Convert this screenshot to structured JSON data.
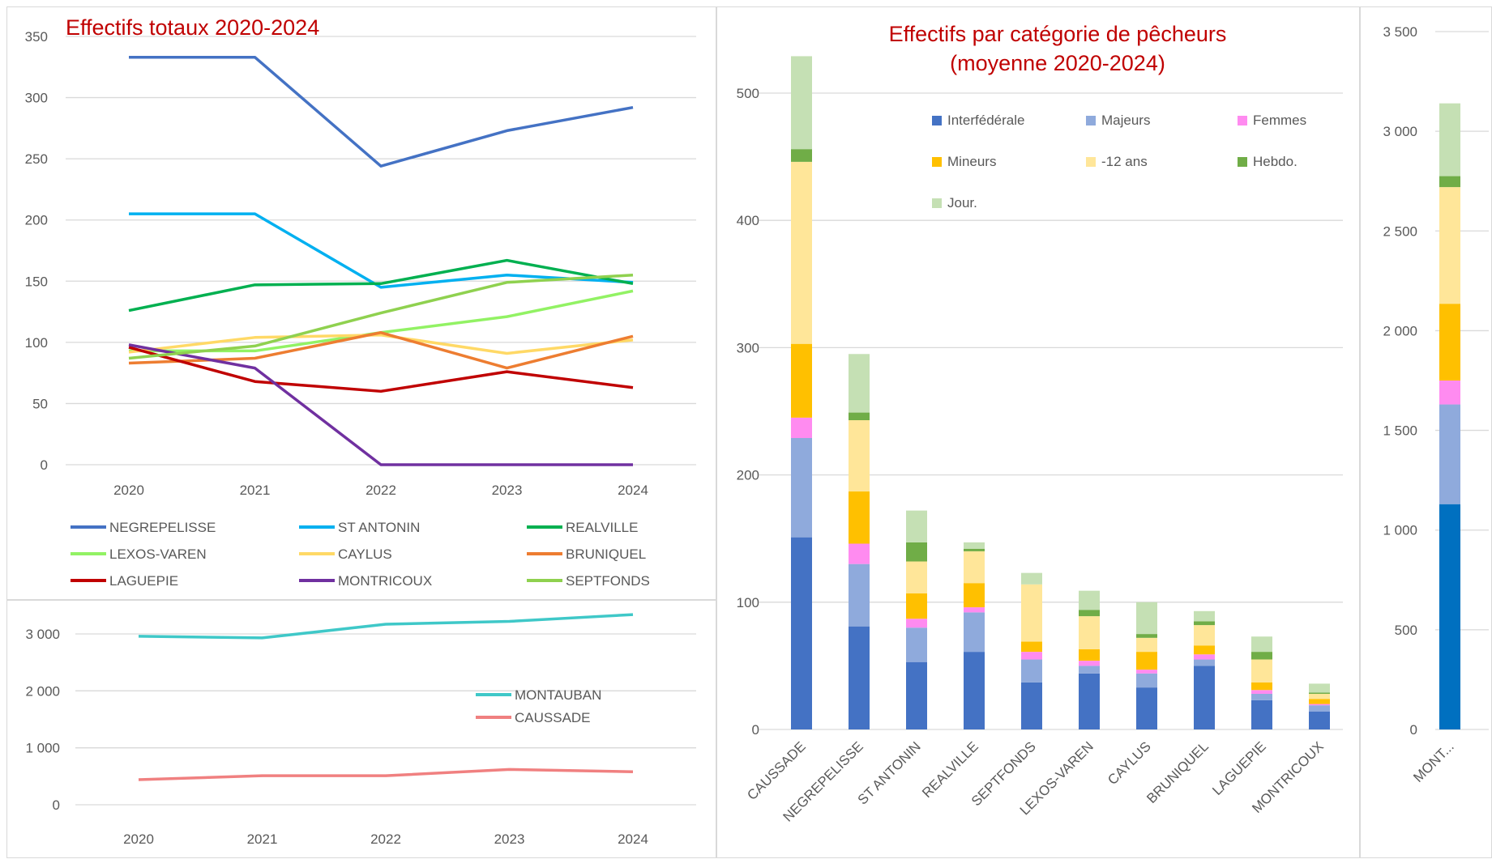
{
  "chart_data": [
    {
      "id": "totals",
      "type": "line",
      "title": "Effectifs totaux 2020-2024",
      "x": [
        "2020",
        "2021",
        "2022",
        "2023",
        "2024"
      ],
      "ylim": [
        0,
        350
      ],
      "yticks": [
        "0",
        "50",
        "100",
        "150",
        "200",
        "250",
        "300",
        "350"
      ],
      "legend_position": "bottom",
      "series": [
        {
          "name": "NEGREPELISSE",
          "color": "#4472c4",
          "values": [
            333,
            333,
            244,
            273,
            292
          ]
        },
        {
          "name": "ST ANTONIN",
          "color": "#00b0f0",
          "values": [
            205,
            205,
            145,
            155,
            149
          ]
        },
        {
          "name": "REALVILLE",
          "color": "#00b050",
          "values": [
            126,
            147,
            148,
            167,
            148
          ]
        },
        {
          "name": "LEXOS-VAREN",
          "color": "#92f264",
          "values": [
            93,
            93,
            108,
            121,
            142
          ]
        },
        {
          "name": "CAYLUS",
          "color": "#ffd966",
          "values": [
            92,
            104,
            106,
            91,
            102
          ]
        },
        {
          "name": "BRUNIQUEL",
          "color": "#ed7d31",
          "values": [
            83,
            87,
            108,
            79,
            105
          ]
        },
        {
          "name": "LAGUEPIE",
          "color": "#c00000",
          "values": [
            96,
            68,
            60,
            76,
            63
          ]
        },
        {
          "name": "MONTRICOUX",
          "color": "#7030a0",
          "values": [
            98,
            79,
            0,
            0,
            0
          ]
        },
        {
          "name": "SEPTFONDS",
          "color": "#8fd14f",
          "values": [
            87,
            97,
            124,
            149,
            155
          ]
        }
      ]
    },
    {
      "id": "big",
      "type": "line",
      "title": "",
      "x": [
        "2020",
        "2021",
        "2022",
        "2023",
        "2024"
      ],
      "ylim": [
        0,
        3000
      ],
      "yticks": [
        "0",
        "1 000",
        "2 000",
        "3 000"
      ],
      "legend_position": "right",
      "series": [
        {
          "name": "MONTAUBAN",
          "color": "#3fc8c8",
          "values": [
            2960,
            2930,
            3170,
            3220,
            3340
          ]
        },
        {
          "name": "CAUSSADE",
          "color": "#f08080",
          "values": [
            440,
            510,
            510,
            620,
            580
          ]
        }
      ]
    },
    {
      "id": "categories",
      "type": "bar",
      "stacked": true,
      "title": "Effectifs par catégorie de pêcheurs (moyenne 2020-2024)",
      "title_lines": [
        "Effectifs par catégorie de pêcheurs",
        "(moyenne 2020-2024)"
      ],
      "ylim": [
        0,
        500
      ],
      "yticks": [
        "0",
        "100",
        "200",
        "300",
        "400",
        "500"
      ],
      "legend_position": "top-right",
      "categories": [
        "CAUSSADE",
        "NEGREPELISSE",
        "ST ANTONIN",
        "REALVILLE",
        "SEPTFONDS",
        "LEXOS-VAREN",
        "CAYLUS",
        "BRUNIQUEL",
        "LAGUEPIE",
        "MONTRICOUX"
      ],
      "series": [
        {
          "name": "Interfédérale",
          "color": "#4472c4",
          "values": [
            151,
            81,
            53,
            61,
            37,
            44,
            33,
            50,
            23,
            14
          ]
        },
        {
          "name": "Majeurs",
          "color": "#8faadc",
          "values": [
            78,
            49,
            27,
            31,
            18,
            6,
            11,
            5,
            5,
            5
          ]
        },
        {
          "name": "Femmes",
          "color": "#ff8bf0",
          "values": [
            16,
            16,
            7,
            4,
            6,
            4,
            3,
            4,
            3,
            1
          ]
        },
        {
          "name": "Mineurs",
          "color": "#ffc000",
          "values": [
            58,
            41,
            20,
            19,
            8,
            9,
            14,
            7,
            6,
            4
          ]
        },
        {
          "name": "-12 ans",
          "color": "#ffe699",
          "values": [
            143,
            56,
            25,
            25,
            45,
            26,
            11,
            16,
            18,
            4
          ]
        },
        {
          "name": "Hebdo.",
          "color": "#70ad47",
          "values": [
            10,
            6,
            15,
            2,
            0,
            5,
            3,
            3,
            6,
            1
          ]
        },
        {
          "name": "Jour.",
          "color": "#c5e0b4",
          "values": [
            73,
            46,
            25,
            5,
            9,
            15,
            25,
            8,
            12,
            7
          ]
        }
      ]
    },
    {
      "id": "montauban-bar",
      "type": "bar",
      "stacked": true,
      "title": "",
      "ylim": [
        0,
        3500
      ],
      "yticks": [
        "0",
        "500",
        "1 000",
        "1 500",
        "2 000",
        "2 500",
        "3 000",
        "3 500"
      ],
      "categories": [
        "MONT..."
      ],
      "series": [
        {
          "name": "Interfédérale",
          "color": "#0070c0",
          "values": [
            1130
          ]
        },
        {
          "name": "Majeurs",
          "color": "#8faadc",
          "values": [
            500
          ]
        },
        {
          "name": "Femmes",
          "color": "#ff8bf0",
          "values": [
            120
          ]
        },
        {
          "name": "Mineurs",
          "color": "#ffc000",
          "values": [
            385
          ]
        },
        {
          "name": "-12 ans",
          "color": "#ffe699",
          "values": [
            585
          ]
        },
        {
          "name": "Hebdo.",
          "color": "#70ad47",
          "values": [
            55
          ]
        },
        {
          "name": "Jour.",
          "color": "#c5e0b4",
          "values": [
            365
          ]
        }
      ]
    }
  ]
}
